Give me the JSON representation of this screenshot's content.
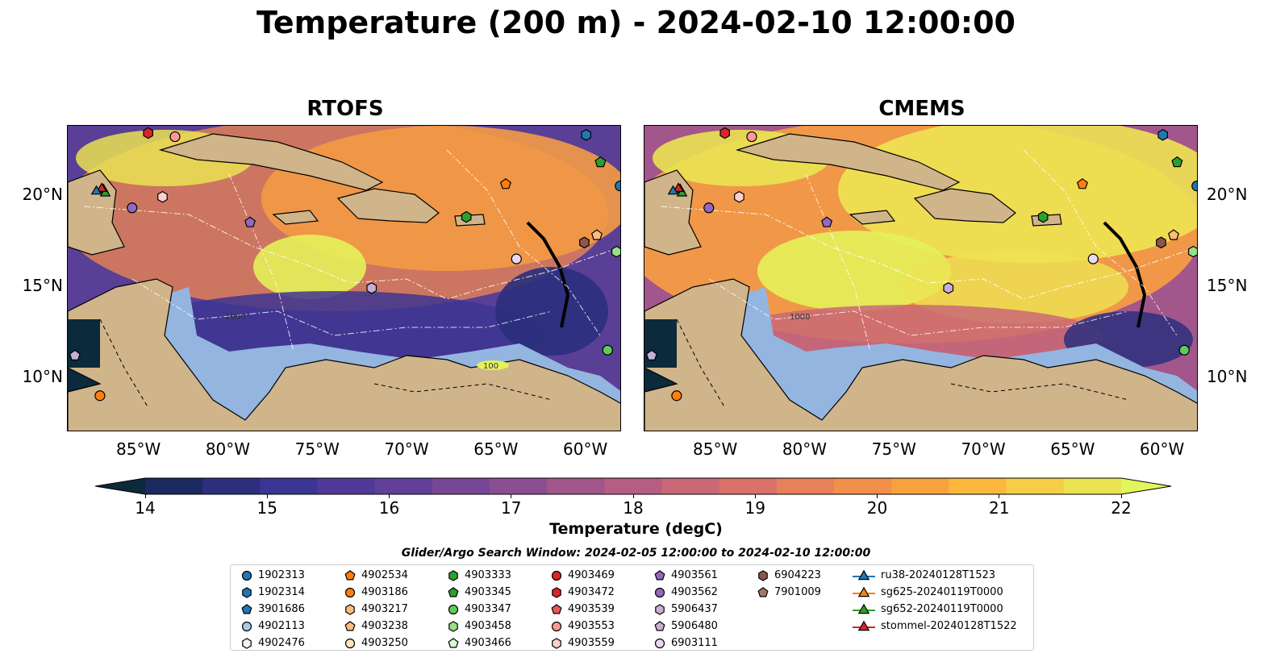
{
  "title": "Temperature (200 m) - 2024-02-10 12:00:00",
  "panels": [
    {
      "title": "RTOFS",
      "contour_labels": [
        "1000",
        "100"
      ]
    },
    {
      "title": "CMEMS",
      "contour_labels": [
        "1000"
      ]
    }
  ],
  "axes": {
    "longitude_ticks": [
      "85°W",
      "80°W",
      "75°W",
      "70°W",
      "65°W",
      "60°W"
    ],
    "latitude_ticks": [
      "20°N",
      "15°N",
      "10°N"
    ]
  },
  "colorbar": {
    "label": "Temperature (degC)",
    "ticks": [
      "14",
      "15",
      "16",
      "17",
      "18",
      "19",
      "20",
      "21",
      "22"
    ],
    "range": [
      14,
      22
    ],
    "extend": "both",
    "colors": [
      "#0b2a3b",
      "#1a2a60",
      "#2d2f7e",
      "#3b3593",
      "#4f3a99",
      "#623f9a",
      "#774697",
      "#8c4e92",
      "#a2568b",
      "#b65e82",
      "#c96877",
      "#da7269",
      "#e8805a",
      "#f28f4a",
      "#f8a23e",
      "#fbb83d",
      "#f6ce45",
      "#eae352",
      "#e2f55c"
    ]
  },
  "search_window": "Glider/Argo Search Window: 2024-02-05 12:00:00 to 2024-02-10 12:00:00",
  "legend": [
    {
      "label": "1902313",
      "marker": "circle",
      "color": "#1f77b4"
    },
    {
      "label": "1902314",
      "marker": "hexagon",
      "color": "#1f77b4"
    },
    {
      "label": "3901686",
      "marker": "pentagon",
      "color": "#1f77b4"
    },
    {
      "label": "4902113",
      "marker": "circle",
      "color": "#aec7e8"
    },
    {
      "label": "4902476",
      "marker": "hexagon",
      "color": "#eef3fb"
    },
    {
      "label": "4902534",
      "marker": "pentagon",
      "color": "#ff7f0e"
    },
    {
      "label": "4903186",
      "marker": "circle",
      "color": "#ff7f0e"
    },
    {
      "label": "4903217",
      "marker": "hexagon",
      "color": "#ffbb78"
    },
    {
      "label": "4903238",
      "marker": "pentagon",
      "color": "#ffbb78"
    },
    {
      "label": "4903250",
      "marker": "circle",
      "color": "#ffe0c0"
    },
    {
      "label": "4903333",
      "marker": "hexagon",
      "color": "#2ca02c"
    },
    {
      "label": "4903345",
      "marker": "pentagon",
      "color": "#2ca02c"
    },
    {
      "label": "4903347",
      "marker": "circle",
      "color": "#5ccc5c"
    },
    {
      "label": "4903458",
      "marker": "hexagon",
      "color": "#98df8a"
    },
    {
      "label": "4903466",
      "marker": "pentagon",
      "color": "#d9f7d2"
    },
    {
      "label": "4903469",
      "marker": "circle",
      "color": "#d62728"
    },
    {
      "label": "4903472",
      "marker": "hexagon",
      "color": "#d62728"
    },
    {
      "label": "4903539",
      "marker": "pentagon",
      "color": "#e8555a"
    },
    {
      "label": "4903553",
      "marker": "circle",
      "color": "#ff9896"
    },
    {
      "label": "4903559",
      "marker": "hexagon",
      "color": "#ffcfcd"
    },
    {
      "label": "4903561",
      "marker": "pentagon",
      "color": "#9467bd"
    },
    {
      "label": "4903562",
      "marker": "circle",
      "color": "#9467bd"
    },
    {
      "label": "5906437",
      "marker": "hexagon",
      "color": "#c5b0d5"
    },
    {
      "label": "5906480",
      "marker": "pentagon",
      "color": "#c5b0d5"
    },
    {
      "label": "6903111",
      "marker": "circle",
      "color": "#e9d9f0"
    },
    {
      "label": "6904223",
      "marker": "hexagon",
      "color": "#8c564b"
    },
    {
      "label": "7901009",
      "marker": "pentagon",
      "color": "#a8756a"
    },
    {
      "label": "ru38-20240128T1523",
      "marker": "triangle",
      "color": "#1f77b4"
    },
    {
      "label": "sg625-20240119T0000",
      "marker": "triangle",
      "color": "#ff7f0e"
    },
    {
      "label": "sg652-20240119T0000",
      "marker": "triangle",
      "color": "#2ca02c"
    },
    {
      "label": "stommel-20240128T1522",
      "marker": "triangle",
      "color": "#d62728"
    }
  ],
  "map_markers": [
    {
      "lon": -84.5,
      "lat": 23.4,
      "marker": "hexagon",
      "color": "#d62728"
    },
    {
      "lon": -83.0,
      "lat": 23.2,
      "marker": "circle",
      "color": "#ff9896"
    },
    {
      "lon": -83.7,
      "lat": 19.9,
      "marker": "hexagon",
      "color": "#ffcfcd"
    },
    {
      "lon": -85.4,
      "lat": 19.3,
      "marker": "circle",
      "color": "#9467bd"
    },
    {
      "lon": -78.8,
      "lat": 18.5,
      "marker": "pentagon",
      "color": "#9467bd"
    },
    {
      "lon": -72.0,
      "lat": 14.9,
      "marker": "hexagon",
      "color": "#c5b0d5"
    },
    {
      "lon": -66.7,
      "lat": 18.8,
      "marker": "hexagon",
      "color": "#2ca02c"
    },
    {
      "lon": -64.5,
      "lat": 20.6,
      "marker": "pentagon",
      "color": "#ff7f0e"
    },
    {
      "lon": -63.9,
      "lat": 16.5,
      "marker": "circle",
      "color": "#e9d9f0"
    },
    {
      "lon": -60.0,
      "lat": 23.3,
      "marker": "hexagon",
      "color": "#1f77b4"
    },
    {
      "lon": -59.2,
      "lat": 21.8,
      "marker": "pentagon",
      "color": "#2ca02c"
    },
    {
      "lon": -58.1,
      "lat": 20.5,
      "marker": "circle",
      "color": "#1f77b4"
    },
    {
      "lon": -59.4,
      "lat": 17.8,
      "marker": "pentagon",
      "color": "#ffbb78"
    },
    {
      "lon": -60.1,
      "lat": 17.4,
      "marker": "hexagon",
      "color": "#8c564b"
    },
    {
      "lon": -58.3,
      "lat": 16.9,
      "marker": "hexagon",
      "color": "#98df8a"
    },
    {
      "lon": -58.8,
      "lat": 11.5,
      "marker": "circle",
      "color": "#5ccc5c"
    },
    {
      "lon": -88.6,
      "lat": 11.2,
      "marker": "pentagon",
      "color": "#c5b0d5"
    },
    {
      "lon": -87.2,
      "lat": 9.0,
      "marker": "circle",
      "color": "#ff7f0e"
    },
    {
      "lon": -87.0,
      "lat": 20.3,
      "marker": "triangle",
      "color": "#ff7f0e"
    },
    {
      "lon": -86.9,
      "lat": 20.1,
      "marker": "triangle",
      "color": "#2ca02c"
    },
    {
      "lon": -87.1,
      "lat": 20.35,
      "marker": "triangle",
      "color": "#d62728"
    },
    {
      "lon": -87.4,
      "lat": 20.2,
      "marker": "triangle",
      "color": "#1f77b4"
    }
  ]
}
